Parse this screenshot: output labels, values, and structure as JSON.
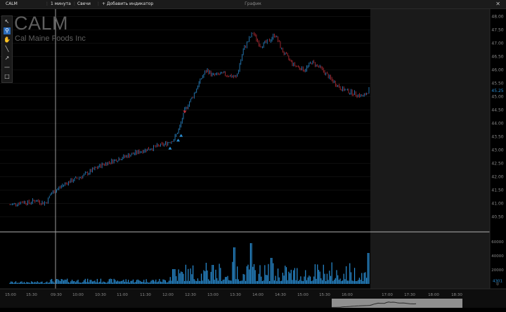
{
  "topbar": {
    "symbol": "CALM",
    "interval": "1 минута",
    "chart_type": "Свечи",
    "add_indicator": "+ Добавить индикатор",
    "center_title": "График",
    "close_icon": "close-icon"
  },
  "toolbar": {
    "tools": [
      "arrow-cursor-icon",
      "zoom-icon",
      "hand-icon",
      "line-icon",
      "ray-icon",
      "horizontal-line-icon",
      "rectangle-icon"
    ],
    "active_tool": "zoom-icon"
  },
  "instrument": {
    "ticker": "CALM",
    "company": "Cal Maine Foods Inc"
  },
  "chart_data": {
    "type": "candlestick",
    "price_axis_labels": [
      "48.00",
      "47.50",
      "47.00",
      "46.50",
      "46.00",
      "45.50",
      "45.00",
      "44.50",
      "44.00",
      "43.50",
      "43.00",
      "42.50",
      "42.00",
      "41.50",
      "41.00",
      "40.50"
    ],
    "price_ylim": [
      40.28,
      48.12
    ],
    "current_price_label": "45.25",
    "current_price": 45.25,
    "volume_axis_labels": [
      "60000",
      "40000",
      "20000",
      "4301",
      "0"
    ],
    "volume_ylim": [
      0,
      68000
    ],
    "time_axis_labels": [
      "15:00",
      "15:30",
      "09:30",
      "10:00",
      "10:30",
      "11:00",
      "11:30",
      "12:00",
      "12:30",
      "13:00",
      "13:30",
      "14:00",
      "14:30",
      "15:00",
      "15:30",
      "16:00",
      "17:00",
      "17:30",
      "18:00",
      "18:30"
    ],
    "crosshair_time": "09:30",
    "price_path": [
      {
        "t": 0,
        "p": 40.95
      },
      {
        "t": 0.25,
        "p": 41.02
      },
      {
        "t": 0.35,
        "p": 41.08
      },
      {
        "t": 0.5,
        "p": 41.02
      },
      {
        "t": 0.7,
        "p": 41.12
      },
      {
        "t": 0.9,
        "p": 41.02
      },
      {
        "t": 1.0,
        "p": 41.05
      },
      {
        "t": 1.1,
        "p": 41.35
      },
      {
        "t": 1.5,
        "p": 41.75
      },
      {
        "t": 2.0,
        "p": 42.05
      },
      {
        "t": 2.5,
        "p": 42.45
      },
      {
        "t": 3.0,
        "p": 42.7
      },
      {
        "t": 3.6,
        "p": 42.98
      },
      {
        "t": 4.2,
        "p": 43.22
      },
      {
        "t": 4.45,
        "p": 43.4
      },
      {
        "t": 4.6,
        "p": 43.8
      },
      {
        "t": 4.75,
        "p": 44.5
      },
      {
        "t": 5.0,
        "p": 45.1
      },
      {
        "t": 5.2,
        "p": 45.7
      },
      {
        "t": 5.35,
        "p": 46.0
      },
      {
        "t": 5.5,
        "p": 45.8
      },
      {
        "t": 5.8,
        "p": 45.85
      },
      {
        "t": 6.15,
        "p": 45.72
      },
      {
        "t": 6.35,
        "p": 46.8
      },
      {
        "t": 6.6,
        "p": 47.4
      },
      {
        "t": 6.8,
        "p": 46.9
      },
      {
        "t": 7.05,
        "p": 47.1
      },
      {
        "t": 7.2,
        "p": 47.35
      },
      {
        "t": 7.4,
        "p": 46.7
      },
      {
        "t": 7.7,
        "p": 46.2
      },
      {
        "t": 8.0,
        "p": 46.0
      },
      {
        "t": 8.2,
        "p": 46.3
      },
      {
        "t": 8.45,
        "p": 46.05
      },
      {
        "t": 8.75,
        "p": 45.6
      },
      {
        "t": 9.0,
        "p": 45.3
      },
      {
        "t": 9.35,
        "p": 45.12
      },
      {
        "t": 9.6,
        "p": 45.0
      },
      {
        "t": 9.75,
        "p": 45.25
      }
    ],
    "signal_markers": [
      {
        "t": 4.35,
        "p": 43.1,
        "type": "buy"
      },
      {
        "t": 4.57,
        "p": 43.4,
        "type": "buy"
      },
      {
        "t": 4.65,
        "p": 43.58,
        "type": "buy"
      },
      {
        "t": 4.75,
        "p": 44.4,
        "type": "sell"
      }
    ],
    "colors": {
      "up": "#2a8fd6",
      "down": "#c0303a",
      "volume": "#2a8fd6",
      "future_bg": "#1a1a1a",
      "grid": "#1c1c1c"
    }
  }
}
